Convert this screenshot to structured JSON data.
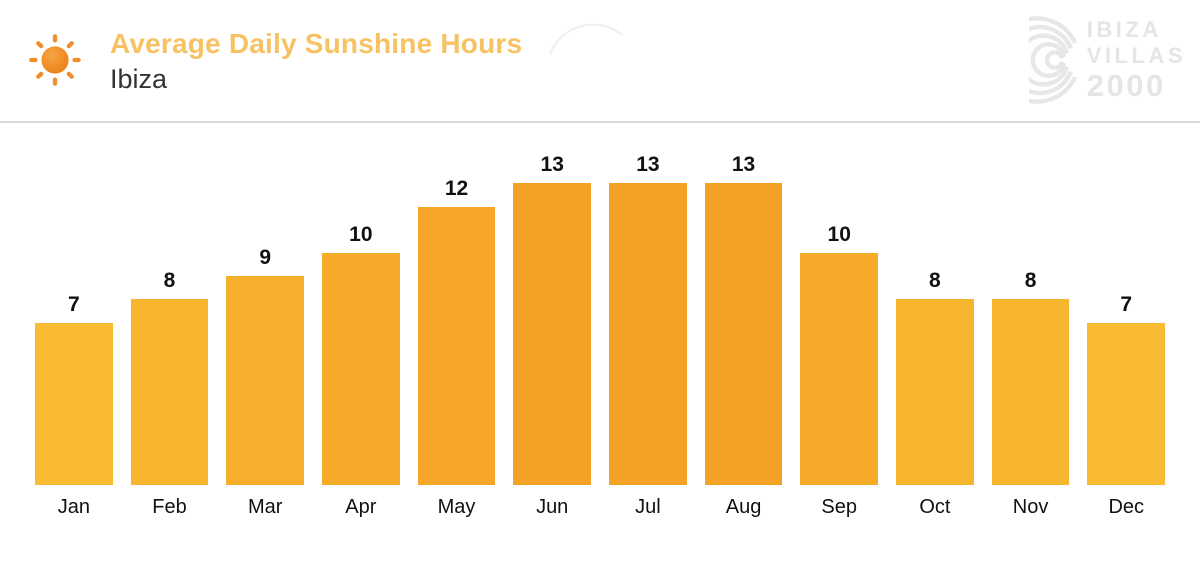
{
  "header": {
    "title": "Average Daily Sunshine Hours",
    "subtitle": "Ibiza"
  },
  "logo": {
    "line1": "IBIZA",
    "line2": "VILLAS",
    "line3": "2000"
  },
  "icons": {
    "sun": "sun-icon",
    "logo_mark": "concentric-arcs-icon"
  },
  "colors": {
    "title": "#F7C262",
    "subtitle": "#333333",
    "divider": "#D9D9D9",
    "label": "#111111",
    "logo_gray": "#E5E5E5",
    "sun_core_light": "#F5A445",
    "sun_core_dark": "#ED7D0E",
    "sun_ray": "#EF8D2A",
    "decor_arc": "#F0F0F0"
  },
  "chart_data": {
    "type": "bar",
    "title": "Average Daily Sunshine Hours",
    "subtitle": "Ibiza",
    "categories": [
      "Jan",
      "Feb",
      "Mar",
      "Apr",
      "May",
      "Jun",
      "Jul",
      "Aug",
      "Sep",
      "Oct",
      "Nov",
      "Dec"
    ],
    "values": [
      7,
      8,
      9,
      10,
      12,
      13,
      13,
      13,
      10,
      8,
      8,
      7
    ],
    "bar_colors": [
      "#F8BB33",
      "#F7B42E",
      "#F6AF2C",
      "#F6AA29",
      "#F5A527",
      "#F4A125",
      "#F4A125",
      "#F4A125",
      "#F6AA29",
      "#F7B42E",
      "#F7B42E",
      "#F8BB33"
    ],
    "xlabel": "",
    "ylabel": "",
    "ylim": [
      0,
      13
    ],
    "value_labels_shown": true,
    "grid": false,
    "legend": false
  }
}
